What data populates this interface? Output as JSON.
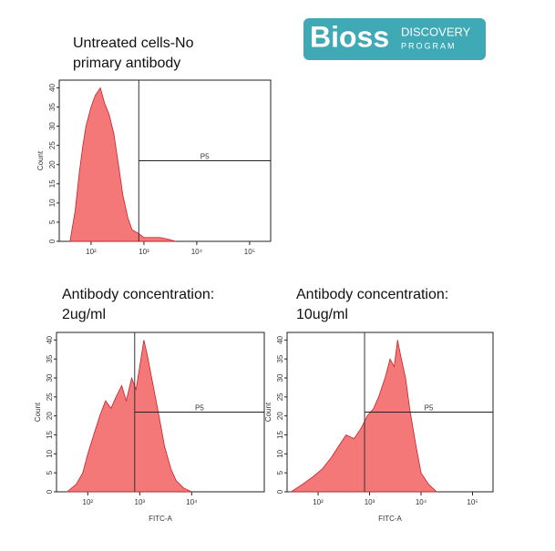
{
  "logo": {
    "brand": "Bioss",
    "line1": "DISCOVERY",
    "line2": "PROGRAM"
  },
  "chart_data": [
    {
      "type": "area",
      "title": [
        "Untreated cells-No",
        "primary antibody"
      ],
      "ylabel": "Count",
      "color": "#f26060",
      "xlog": true,
      "xlim": [
        25,
        250000
      ],
      "ylim": [
        0,
        42
      ],
      "xticks": [
        {
          "value": 100,
          "label": "10²"
        },
        {
          "value": 1000,
          "label": "10³"
        },
        {
          "value": 10000,
          "label": "10⁴"
        },
        {
          "value": 100000,
          "label": "10⁵"
        }
      ],
      "yticks": [
        0,
        5,
        10,
        15,
        20,
        25,
        30,
        35,
        40
      ],
      "x": [
        40,
        50,
        60,
        70,
        80,
        100,
        120,
        150,
        180,
        220,
        270,
        330,
        400,
        500,
        600,
        800,
        1000,
        1500,
        2000,
        3000,
        4000
      ],
      "values": [
        0,
        8,
        18,
        25,
        30,
        35,
        38,
        40,
        36,
        33,
        28,
        20,
        12,
        6,
        3,
        2,
        1,
        1,
        1,
        0.5,
        0
      ],
      "gate": {
        "label": "P5",
        "x": 800,
        "y": 21
      }
    },
    {
      "type": "area",
      "title": [
        "Antibody concentration:",
        "2ug/ml"
      ],
      "ylabel": "Count",
      "xlabel": "FITC-A",
      "color": "#f26060",
      "xlog": true,
      "xlim": [
        25,
        250000
      ],
      "ylim": [
        0,
        42
      ],
      "xticks": [
        {
          "value": 100,
          "label": "10²"
        },
        {
          "value": 1000,
          "label": "10³"
        },
        {
          "value": 10000,
          "label": "10⁴"
        }
      ],
      "yticks": [
        0,
        5,
        10,
        15,
        20,
        25,
        30,
        35,
        40
      ],
      "x": [
        40,
        60,
        80,
        100,
        130,
        170,
        220,
        280,
        350,
        450,
        550,
        700,
        850,
        1000,
        1200,
        1400,
        1700,
        2000,
        2500,
        3000,
        4000,
        5000,
        7000,
        10000
      ],
      "values": [
        0,
        2,
        5,
        10,
        15,
        20,
        24,
        22,
        25,
        28,
        24,
        30,
        27,
        33,
        40,
        36,
        30,
        25,
        18,
        12,
        6,
        3,
        1,
        0
      ],
      "gate": {
        "label": "P5",
        "x": 800,
        "y": 21
      }
    },
    {
      "type": "area",
      "title": [
        "Antibody concentration:",
        "10ug/ml"
      ],
      "ylabel": "Count",
      "xlabel": "FITC-A",
      "color": "#f26060",
      "xlog": true,
      "xlim": [
        25,
        250000
      ],
      "ylim": [
        0,
        42
      ],
      "xticks": [
        {
          "value": 100,
          "label": "10²"
        },
        {
          "value": 1000,
          "label": "10³"
        },
        {
          "value": 10000,
          "label": "10⁴"
        },
        {
          "value": 100000,
          "label": "10⁵"
        }
      ],
      "yticks": [
        0,
        5,
        10,
        15,
        20,
        25,
        30,
        35,
        40
      ],
      "x": [
        30,
        50,
        80,
        120,
        180,
        250,
        350,
        500,
        700,
        900,
        1200,
        1500,
        2000,
        2500,
        3000,
        3500,
        4000,
        5000,
        6000,
        8000,
        10000,
        14000,
        20000
      ],
      "values": [
        0,
        2,
        4,
        6,
        9,
        12,
        15,
        14,
        17,
        20,
        22,
        25,
        30,
        35,
        33,
        40,
        36,
        30,
        22,
        12,
        5,
        2,
        0
      ],
      "gate": {
        "label": "P5",
        "x": 800,
        "y": 21
      }
    }
  ]
}
